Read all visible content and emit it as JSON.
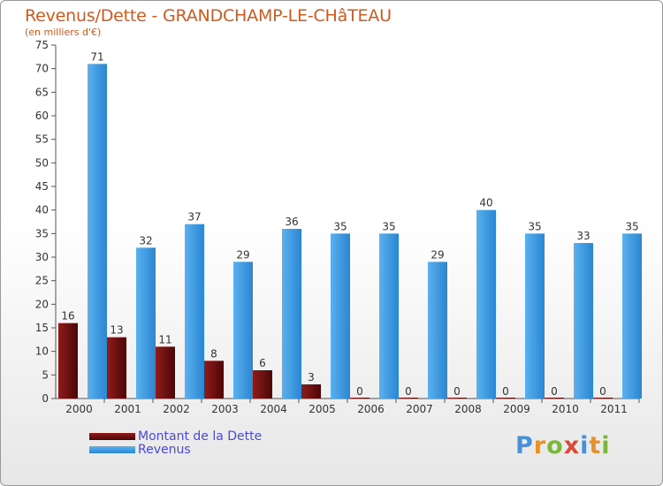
{
  "colors": {
    "dette": "#6b0d0d",
    "revenus": "#3d98e0",
    "axis_text": "#333333",
    "title": "#d05a1e",
    "legend_text": "#4a4ad8"
  },
  "chart_data": {
    "type": "bar",
    "title": "Revenus/Dette - GRANDCHAMP-LE-CHâTEAU",
    "subtitle": "(en milliers d'€)",
    "xlabel": "",
    "ylabel": "",
    "ylim": [
      0,
      75
    ],
    "ytick_step": 5,
    "grid": false,
    "categories": [
      "2000",
      "2001",
      "2002",
      "2003",
      "2004",
      "2005",
      "2006",
      "2007",
      "2008",
      "2009",
      "2010",
      "2011"
    ],
    "series": [
      {
        "name": "Montant de la Dette",
        "color_key": "dette",
        "values": [
          16,
          13,
          11,
          8,
          6,
          3,
          0,
          0,
          0,
          0,
          0,
          0
        ]
      },
      {
        "name": "Revenus",
        "color_key": "revenus",
        "values": [
          71,
          32,
          37,
          29,
          36,
          35,
          35,
          29,
          40,
          35,
          33,
          35
        ]
      }
    ],
    "legend_position": "bottom-left"
  },
  "logo": {
    "letters": [
      "P",
      "r",
      "o",
      "x",
      "i",
      "t",
      "i"
    ],
    "colors": [
      "#4a90d9",
      "#e8902a",
      "#7bb83a",
      "#d94a3a",
      "#4a90d9",
      "#e8902a",
      "#7bb83a"
    ]
  }
}
